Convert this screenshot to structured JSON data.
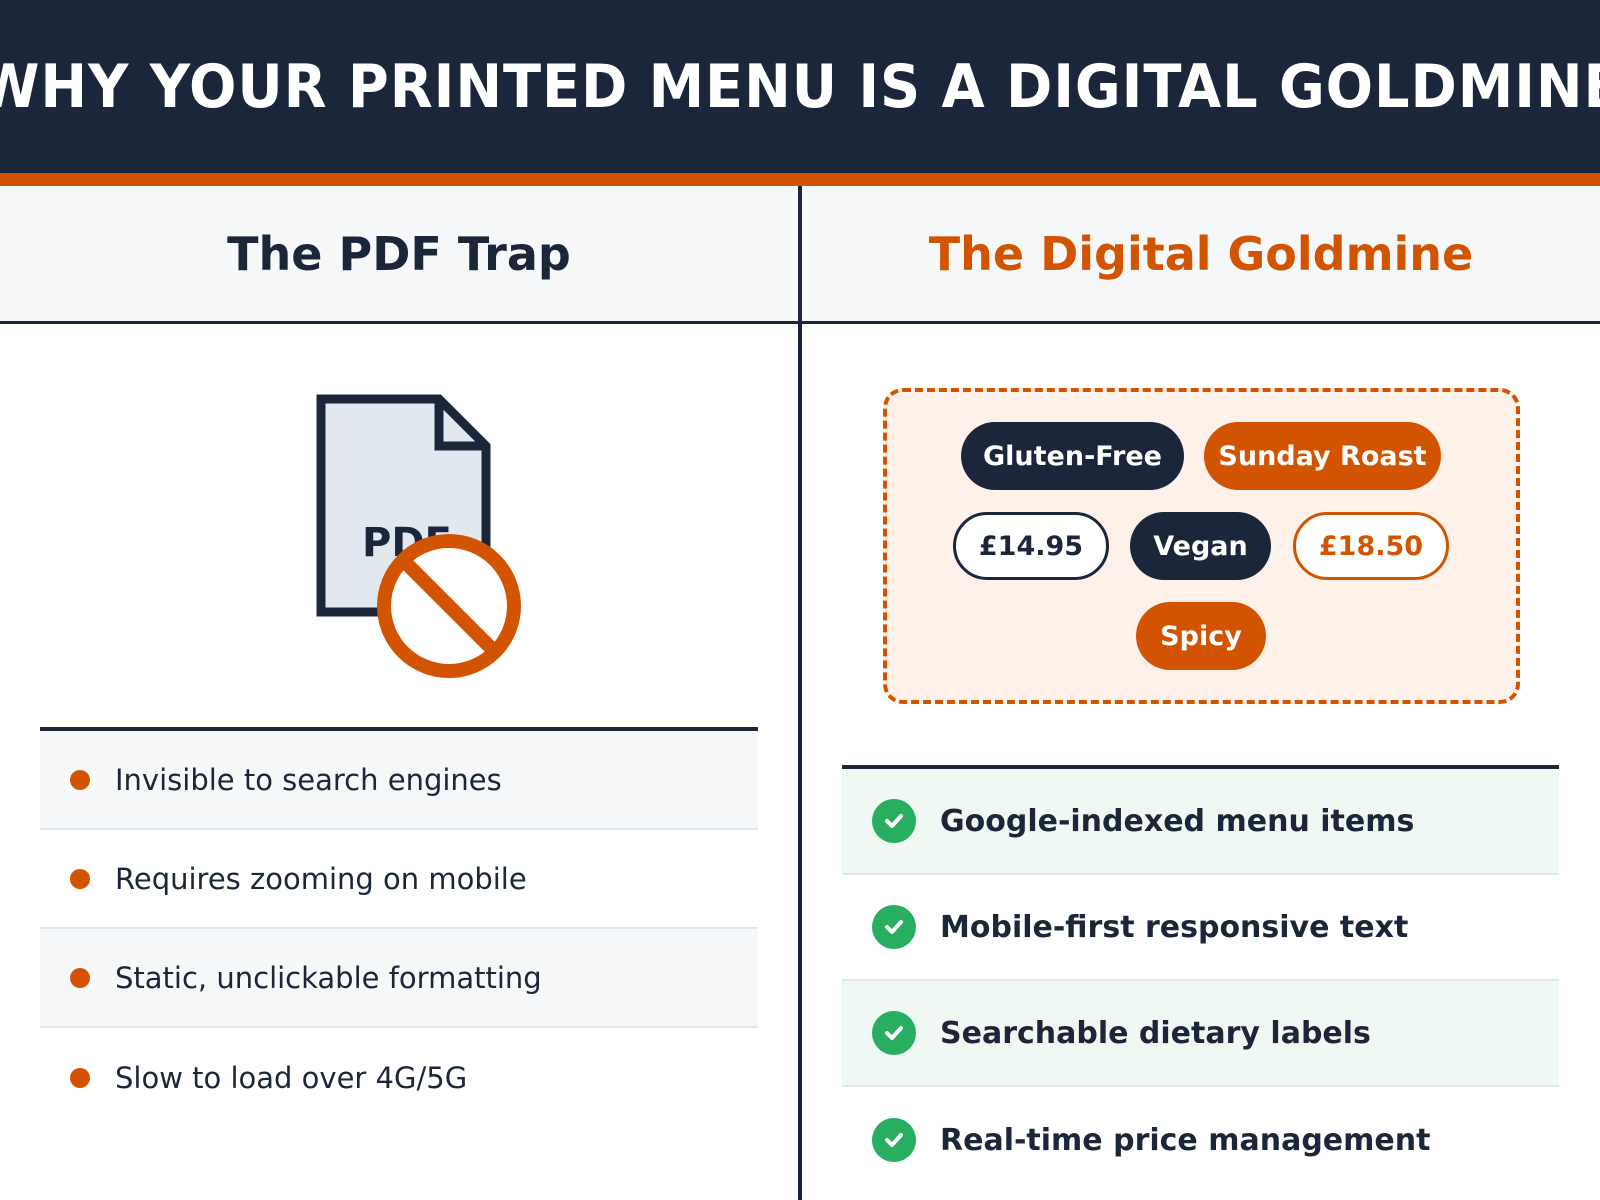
{
  "title": "WHY YOUR PRINTED MENU IS A DIGITAL GOLDMINE",
  "colors": {
    "navy": "#1c263b",
    "accent": "#d35400",
    "success": "#27ae60"
  },
  "left": {
    "heading": "The PDF Trap",
    "icon": "pdf-file-forbidden-icon",
    "icon_label": "PDF",
    "items": [
      "Invisible to search engines",
      "Requires zooming on mobile",
      "Static, unclickable formatting",
      "Slow to load over 4G/5G"
    ]
  },
  "right": {
    "heading": "The Digital Goldmine",
    "tags": [
      "Gluten-Free",
      "Sunday Roast",
      "£14.95",
      "Vegan",
      "£18.50",
      "Spicy"
    ],
    "items": [
      "Google-indexed menu items",
      "Mobile-first responsive text",
      "Searchable dietary labels",
      "Real-time price management"
    ]
  }
}
